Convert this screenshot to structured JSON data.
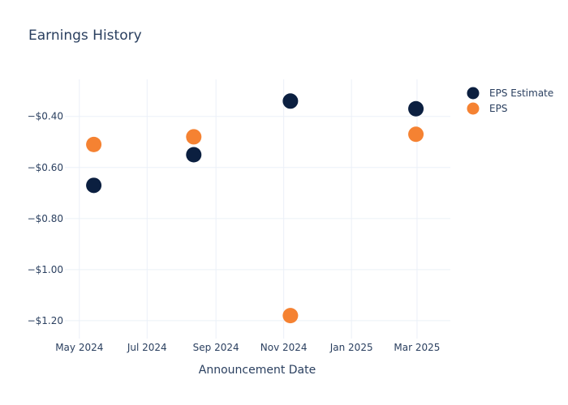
{
  "chart_data": {
    "type": "scatter",
    "title": "Earnings History",
    "xlabel": "Announcement Date",
    "ylabel": "",
    "x_ticks": [
      {
        "date": "2024-05-01",
        "label": "May 2024"
      },
      {
        "date": "2024-07-01",
        "label": "Jul 2024"
      },
      {
        "date": "2024-09-01",
        "label": "Sep 2024"
      },
      {
        "date": "2024-11-01",
        "label": "Nov 2024"
      },
      {
        "date": "2025-01-01",
        "label": "Jan 2025"
      },
      {
        "date": "2025-03-01",
        "label": "Mar 2025"
      }
    ],
    "y_ticks": [
      {
        "value": -0.4,
        "label": "−$0.40"
      },
      {
        "value": -0.6,
        "label": "−$0.60"
      },
      {
        "value": -0.8,
        "label": "−$0.80"
      },
      {
        "value": -1.0,
        "label": "−$1.00"
      },
      {
        "value": -1.2,
        "label": "−$1.20"
      }
    ],
    "xlim": [
      "2024-04-18",
      "2025-03-31"
    ],
    "ylim": [
      -1.27,
      -0.255
    ],
    "grid": true,
    "legend_position": "top-right",
    "series": [
      {
        "name": "EPS Estimate",
        "color": "#0b1f40",
        "points": [
          {
            "x": "2024-05-14",
            "y": -0.67
          },
          {
            "x": "2024-08-12",
            "y": -0.55
          },
          {
            "x": "2024-11-07",
            "y": -0.34
          },
          {
            "x": "2025-02-28",
            "y": -0.37
          }
        ]
      },
      {
        "name": "EPS",
        "color": "#f58232",
        "points": [
          {
            "x": "2024-05-14",
            "y": -0.51
          },
          {
            "x": "2024-08-12",
            "y": -0.48
          },
          {
            "x": "2024-11-07",
            "y": -1.18
          },
          {
            "x": "2025-02-28",
            "y": -0.47
          }
        ]
      }
    ]
  }
}
